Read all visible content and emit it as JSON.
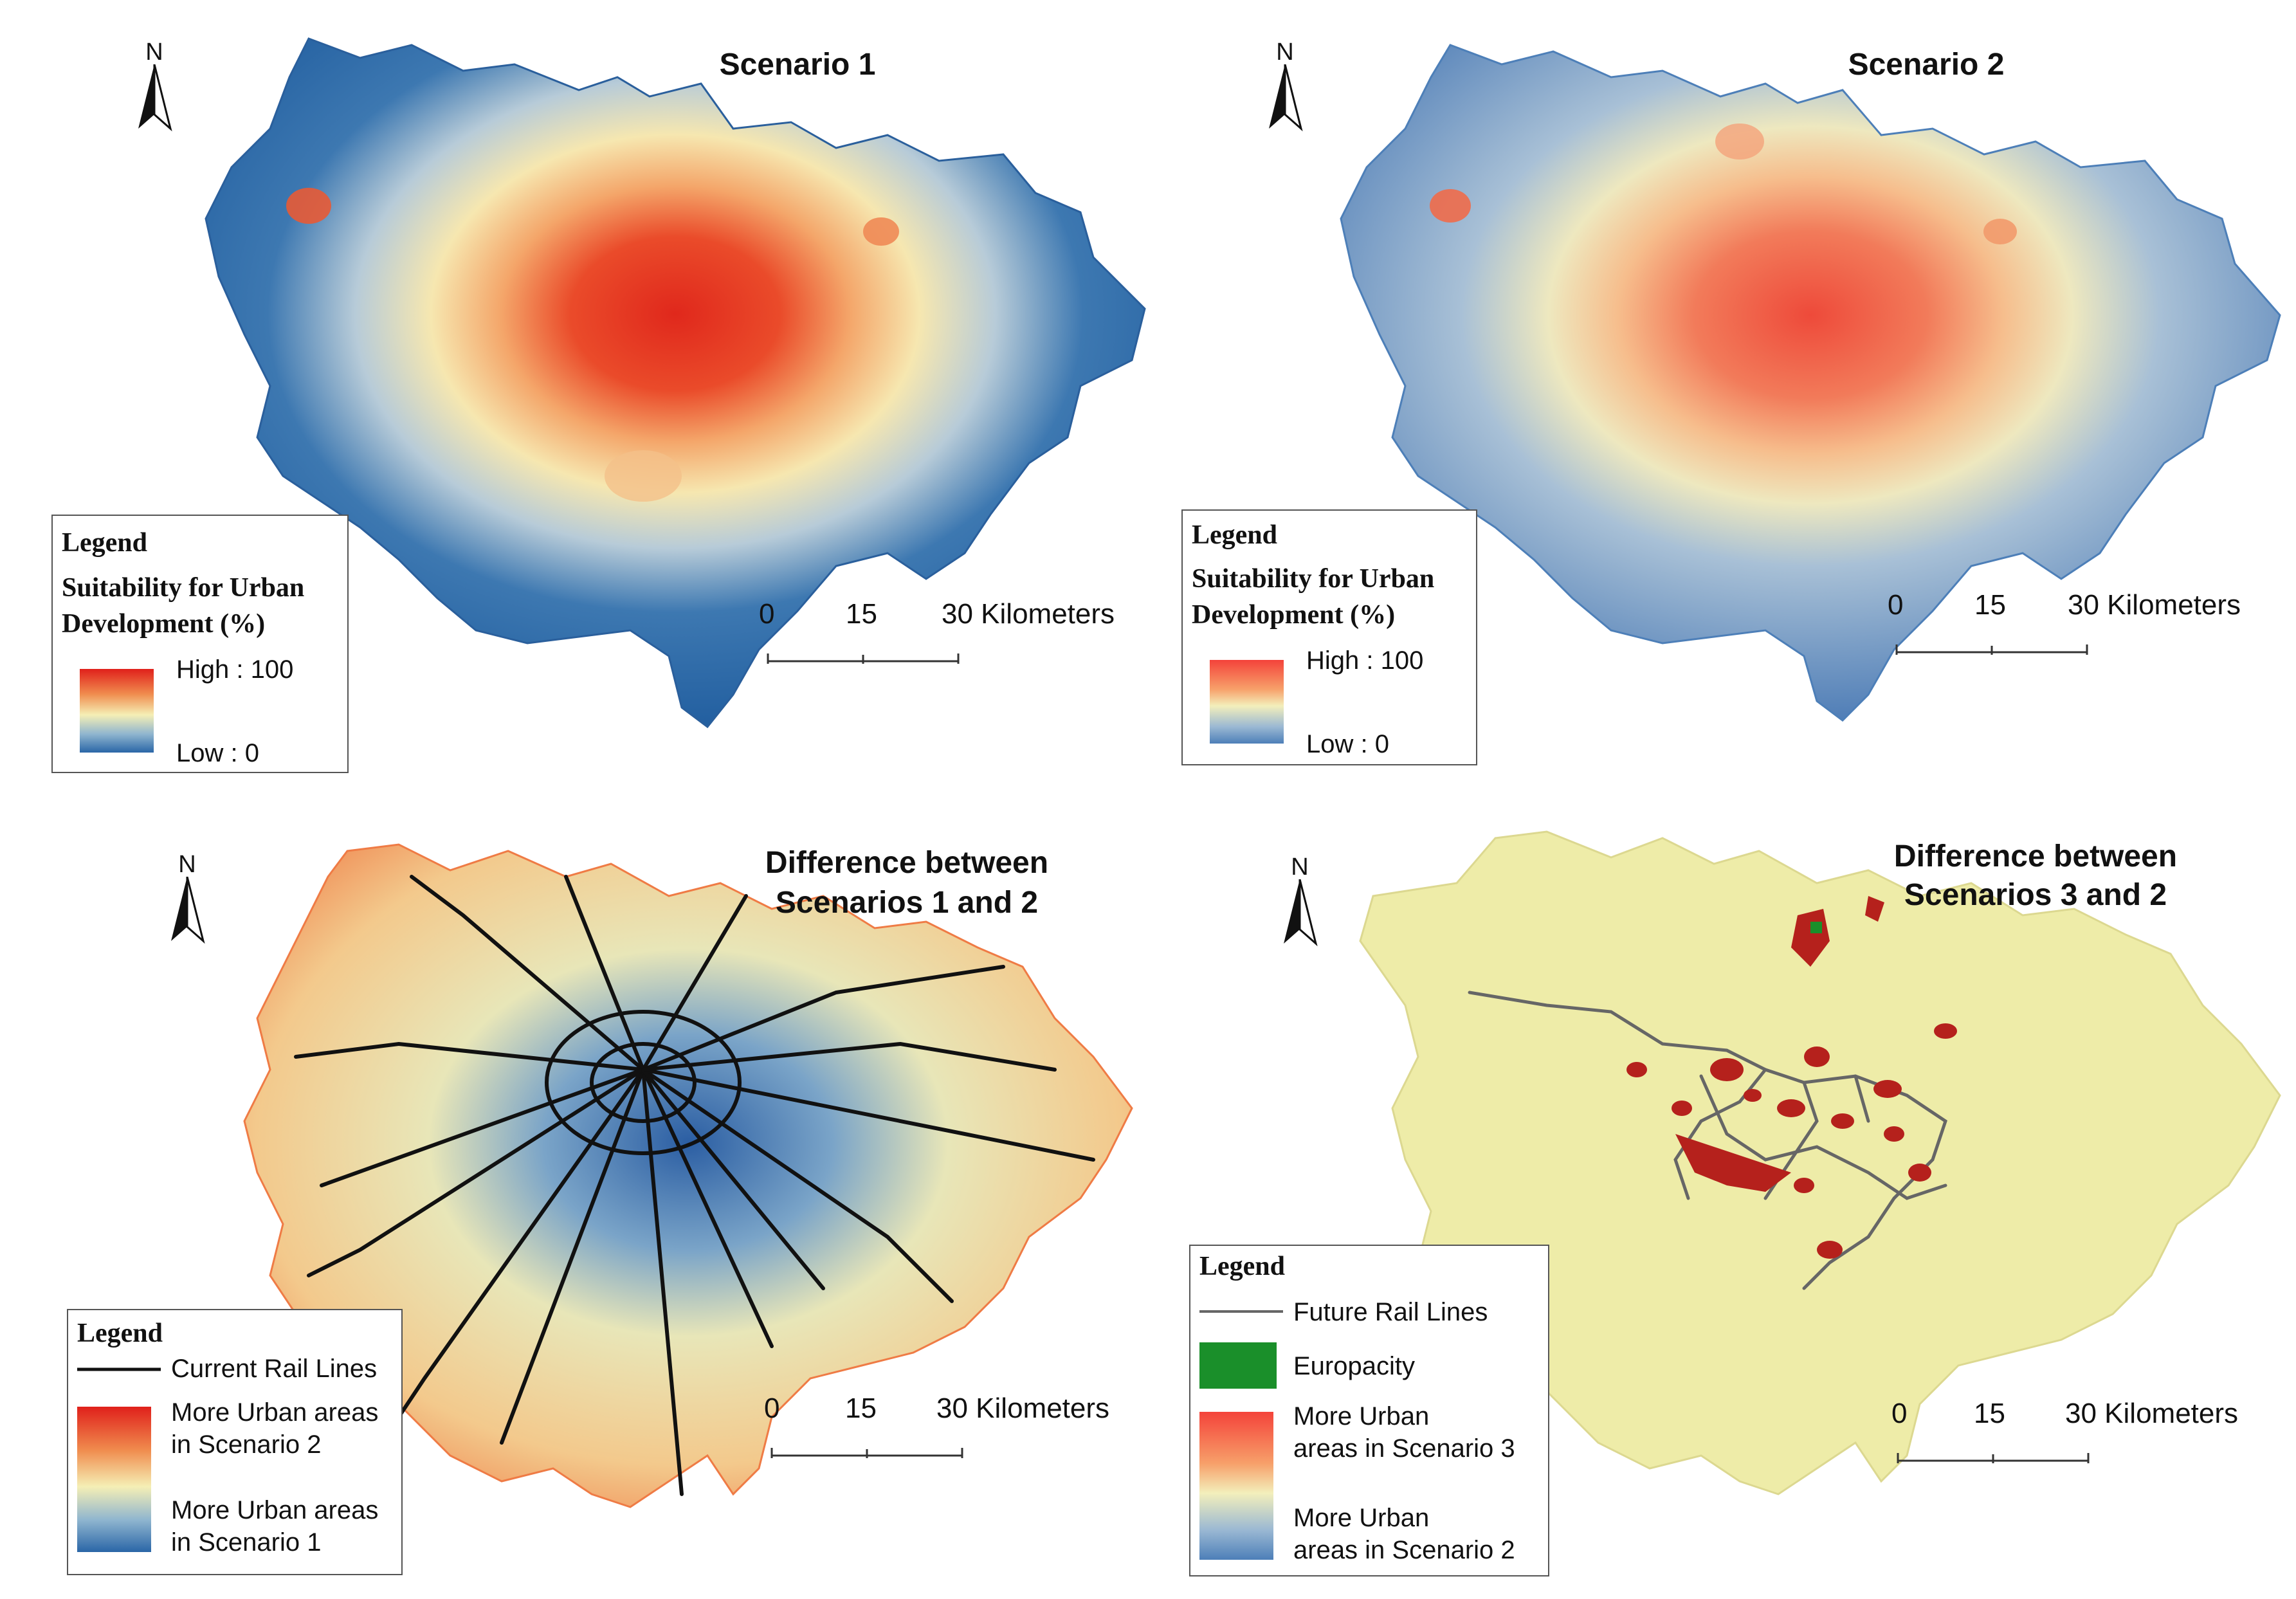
{
  "panels": [
    {
      "id": "scenario1",
      "title": "Scenario 1",
      "north": "N",
      "legend": {
        "title": "Legend",
        "subtitle_line1": "Suitability for Urban",
        "subtitle_line2": "Development (%)",
        "high_label": "High : 100",
        "low_label": "Low : 0"
      },
      "scale": {
        "zero": "0",
        "mid": "15",
        "end": "30 Kilometers"
      }
    },
    {
      "id": "scenario2",
      "title": "Scenario 2",
      "north": "N",
      "legend": {
        "title": "Legend",
        "subtitle_line1": "Suitability for Urban",
        "subtitle_line2": "Development (%)",
        "high_label": "High : 100",
        "low_label": "Low : 0"
      },
      "scale": {
        "zero": "0",
        "mid": "15",
        "end": "30 Kilometers"
      }
    },
    {
      "id": "diff12",
      "title_line1": "Difference between",
      "title_line2": "Scenarios 1 and 2",
      "north": "N",
      "legend": {
        "title": "Legend",
        "rail_label": "Current Rail Lines",
        "high_line1": "More Urban areas",
        "high_line2": "in Scenario 2",
        "low_line1": "More Urban areas",
        "low_line2": "in Scenario 1"
      },
      "scale": {
        "zero": "0",
        "mid": "15",
        "end": "30 Kilometers"
      }
    },
    {
      "id": "diff32",
      "title_line1": "Difference between",
      "title_line2": "Scenarios 3 and 2",
      "north": "N",
      "legend": {
        "title": "Legend",
        "rail_label": "Future Rail Lines",
        "europacity_label": "Europacity",
        "high_line1": "More Urban",
        "high_line2": "areas in Scenario 3",
        "low_line1": "More Urban",
        "low_line2": "areas in Scenario 2"
      },
      "scale": {
        "zero": "0",
        "mid": "15",
        "end": "30 Kilometers"
      }
    }
  ],
  "colors": {
    "high_red": "#e0201b",
    "mid_yellow": "#f5efb5",
    "low_blue": "#2a66a7",
    "base_yellow": "#eeeca8",
    "dark_red": "#b5211c",
    "europacity_green": "#1a8f2a",
    "rail_black": "#111111",
    "future_rail_grey": "#666666"
  }
}
